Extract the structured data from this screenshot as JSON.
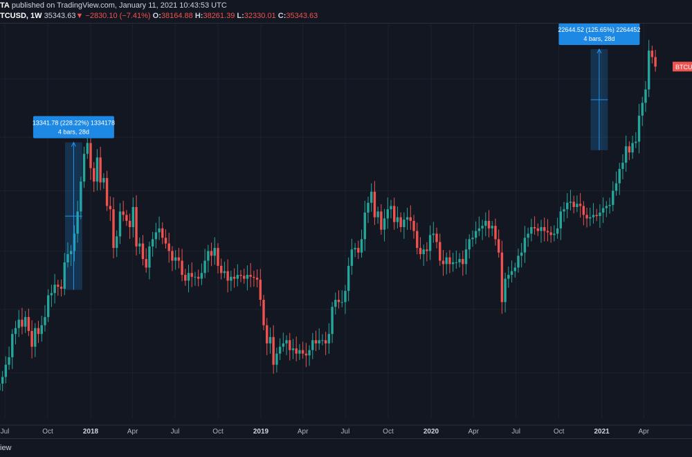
{
  "header": {
    "publisher": "TA",
    "published_text": "published on TradingView.com, January 11, 2021 10:43:53 UTC",
    "symbol": "TCUSD, 1W",
    "last": "35343.63",
    "arrow": "▼",
    "change": "−2830.10 (−7.41%)",
    "o_label": "O:",
    "o_value": "38164.88",
    "h_label": "H:",
    "h_value": "38261.39",
    "l_label": "L:",
    "l_value": "32330.01",
    "c_label": "C:",
    "c_value": "35343.63"
  },
  "footer": {
    "text": "iew"
  },
  "colors": {
    "up": "#26a69a",
    "down": "#ef5350",
    "bg": "#131722",
    "grid": "#1e222d",
    "axis_text": "#b2b5be",
    "measure": "#2196f3"
  },
  "chart_data": {
    "type": "candlestick",
    "x_ticks": [
      {
        "label": "Jul",
        "date": "2017-07-01",
        "bold": false
      },
      {
        "label": "Oct",
        "date": "2017-10-01",
        "bold": false
      },
      {
        "label": "2018",
        "date": "2018-01-01",
        "bold": true
      },
      {
        "label": "Apr",
        "date": "2018-04-01",
        "bold": false
      },
      {
        "label": "Jul",
        "date": "2018-07-01",
        "bold": false
      },
      {
        "label": "Oct",
        "date": "2018-10-01",
        "bold": false
      },
      {
        "label": "2019",
        "date": "2019-01-01",
        "bold": true
      },
      {
        "label": "Apr",
        "date": "2019-04-01",
        "bold": false
      },
      {
        "label": "Jul",
        "date": "2019-07-01",
        "bold": false
      },
      {
        "label": "Oct",
        "date": "2019-10-01",
        "bold": false
      },
      {
        "label": "2020",
        "date": "2020-01-01",
        "bold": true
      },
      {
        "label": "Apr",
        "date": "2020-04-01",
        "bold": false
      },
      {
        "label": "Jul",
        "date": "2020-07-01",
        "bold": false
      },
      {
        "label": "Oct",
        "date": "2020-10-01",
        "bold": false
      },
      {
        "label": "2021",
        "date": "2021-01-01",
        "bold": true
      },
      {
        "label": "Apr",
        "date": "2021-04-01",
        "bold": false
      }
    ],
    "price_tag": "BTCUS",
    "close_series": [
      2450,
      2520,
      2600,
      2750,
      2900,
      3200,
      3400,
      4100,
      4300,
      4600,
      4350,
      4700,
      4200,
      3700,
      4300,
      4100,
      4400,
      4700,
      5600,
      5700,
      6100,
      6000,
      5900,
      7300,
      7800,
      8000,
      9200,
      11000,
      14000,
      17500,
      19100,
      15600,
      14000,
      17000,
      13900,
      14400,
      11500,
      11200,
      8200,
      9000,
      11000,
      10700,
      10200,
      9700,
      11400,
      8300,
      8500,
      7500,
      7000,
      8300,
      8800,
      9300,
      9600,
      8900,
      8500,
      8000,
      7400,
      7600,
      7400,
      6600,
      6300,
      6700,
      6500,
      6500,
      6400,
      6700,
      7400,
      8000,
      7700,
      8200,
      7100,
      6700,
      6800,
      6300,
      6500,
      6400,
      6600,
      6550,
      6400,
      6600,
      6500,
      6450,
      6350,
      5400,
      4400,
      3800,
      4000,
      3200,
      3500,
      3700,
      3800,
      3900,
      3600,
      3650,
      3500,
      3600,
      3500,
      3450,
      3600,
      3900,
      3800,
      3900,
      3900,
      3800,
      4100,
      5100,
      5400,
      5300,
      5300,
      5800,
      7100,
      8100,
      8200,
      7900,
      8800,
      10900,
      11800,
      12900,
      10500,
      11000,
      9500,
      10400,
      11200,
      11500,
      10100,
      10500,
      9700,
      10300,
      10500,
      10200,
      9400,
      8200,
      7800,
      8100,
      8000,
      9100,
      9200,
      8600,
      7400,
      7200,
      7600,
      7200,
      7300,
      7300,
      7500,
      7200,
      8100,
      8800,
      8900,
      9400,
      9600,
      9800,
      10200,
      9600,
      9800,
      8800,
      7900,
      5300,
      6400,
      6600,
      6800,
      7000,
      7700,
      7900,
      8900,
      9200,
      9700,
      9600,
      9400,
      9700,
      9400,
      9300,
      9100,
      9200,
      9600,
      11000,
      11200,
      11800,
      11900,
      11400,
      11700,
      11500,
      10700,
      10400,
      10500,
      10700,
      10600,
      10900,
      11300,
      11500,
      11600,
      13000,
      13800,
      15500,
      16300,
      18600,
      17700,
      19100,
      19300,
      23800,
      26400,
      29400,
      40200,
      38165,
      35344
    ],
    "measurements": [
      {
        "label": "13341.78 (228.22%) 1334178",
        "sub": "4 bars, 28d",
        "x_start": "2017-11-13",
        "x_end": "2017-12-11",
        "y_from": 5850,
        "y_to": 19192
      },
      {
        "label": "22644.52 (125.65%) 2264452",
        "sub": "4 bars, 28d",
        "x_start": "2020-12-14",
        "x_end": "2021-01-11",
        "y_from": 18022,
        "y_to": 40667
      }
    ]
  }
}
